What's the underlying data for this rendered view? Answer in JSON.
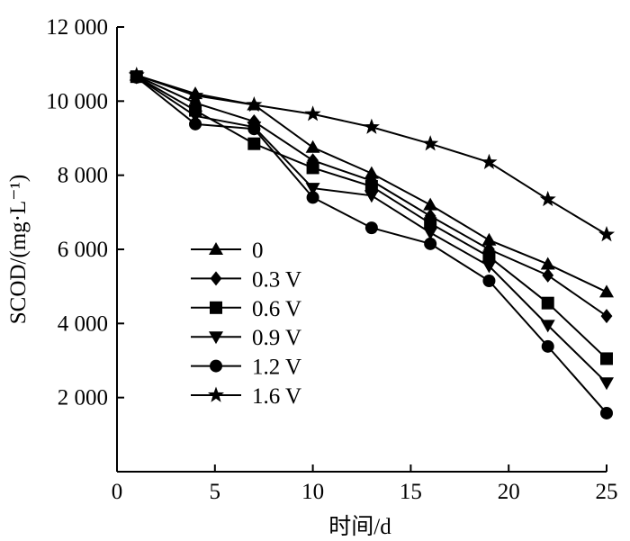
{
  "chart_data": {
    "type": "line",
    "xlabel": "时间/d",
    "ylabel": "SCOD/(mg·L⁻¹)",
    "xlim": [
      0,
      25
    ],
    "ylim": [
      0,
      12000
    ],
    "x_ticks": [
      0,
      5,
      10,
      15,
      20,
      25
    ],
    "x_tick_labels": [
      "0",
      "5",
      "10",
      "15",
      "20",
      "25"
    ],
    "y_ticks": [
      2000,
      4000,
      6000,
      8000,
      10000,
      12000
    ],
    "y_tick_labels": [
      "2 000",
      "4 000",
      "6 000",
      "8 000",
      "10 000",
      "12 000"
    ],
    "grid": false,
    "legend_position": "left-center",
    "marker_color": "#000000",
    "x": [
      1,
      4,
      7,
      10,
      13,
      16,
      19,
      22,
      25
    ],
    "series": [
      {
        "name": "0",
        "marker": "triangle-up",
        "values": [
          10700,
          10200,
          9900,
          8750,
          8050,
          7200,
          6250,
          5600,
          4850
        ]
      },
      {
        "name": "0.3 V",
        "marker": "diamond",
        "values": [
          10680,
          9950,
          9450,
          8400,
          7850,
          6900,
          6000,
          5300,
          4200
        ]
      },
      {
        "name": "0.6 V",
        "marker": "square",
        "values": [
          10660,
          9750,
          8850,
          8200,
          7700,
          6700,
          5800,
          4550,
          3050
        ]
      },
      {
        "name": "0.9 V",
        "marker": "triangle-down",
        "values": [
          10650,
          9600,
          9300,
          7650,
          7450,
          6450,
          5550,
          3950,
          2400
        ]
      },
      {
        "name": "1.2 V",
        "marker": "circle",
        "values": [
          10640,
          9380,
          9250,
          7400,
          6580,
          6150,
          5150,
          3380,
          1580
        ]
      },
      {
        "name": "1.6 V",
        "marker": "star",
        "values": [
          10700,
          10150,
          9900,
          9650,
          9300,
          8850,
          8350,
          7350,
          6400
        ]
      }
    ]
  }
}
